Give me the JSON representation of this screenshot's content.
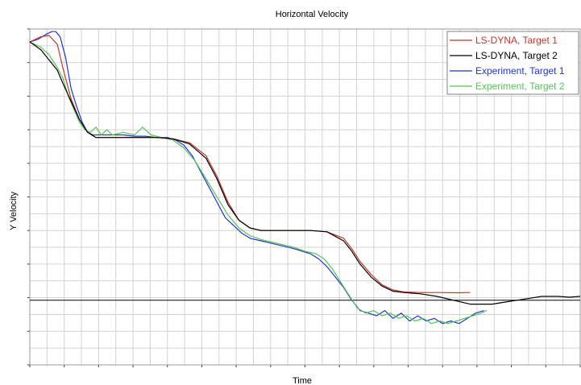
{
  "chart_data": {
    "type": "line",
    "title": "Horizontal Velocity",
    "xlabel": "Time",
    "ylabel": "Y Velocity",
    "grid": true,
    "legend_position": "top-right",
    "xlim": [
      0,
      100
    ],
    "ylim": [
      -25,
      105
    ],
    "zero_line": 0,
    "series": [
      {
        "name": "LS-DYNA, Target 1",
        "color": "#c0392b",
        "x": [
          0,
          2,
          3.5,
          5,
          6,
          7.5,
          9,
          10.5,
          12,
          14,
          17,
          20,
          23,
          26,
          29,
          32,
          34,
          36,
          38,
          40,
          42,
          45,
          48,
          51,
          54,
          57,
          58.5,
          60,
          62,
          64,
          66,
          68,
          71,
          74,
          78,
          80
        ],
        "y": [
          100,
          102,
          102.5,
          99,
          90,
          78,
          70,
          65,
          63,
          63,
          63,
          63,
          63,
          62.5,
          61,
          56,
          48,
          38,
          31,
          28,
          27,
          27,
          27,
          27,
          26.5,
          24,
          20,
          15,
          10,
          6,
          4,
          3.2,
          3,
          3,
          2.9,
          3
        ]
      },
      {
        "name": "LS-DYNA, Target 2",
        "color": "#000000",
        "x": [
          0,
          2,
          3.5,
          5,
          6,
          7.5,
          9,
          10.5,
          12,
          14,
          17,
          20,
          23,
          26,
          29,
          32,
          34,
          36,
          38,
          40,
          42,
          45,
          48,
          51,
          54,
          57,
          58.5,
          60,
          62,
          64,
          66,
          68,
          71,
          74,
          77,
          80,
          84,
          87,
          90,
          93,
          96,
          98,
          100
        ],
        "y": [
          100,
          97,
          93,
          89,
          84,
          77,
          70,
          65,
          63,
          63,
          63,
          63,
          63,
          62.5,
          60.5,
          55,
          47,
          37,
          31,
          28,
          27,
          27,
          27,
          27,
          26.5,
          23,
          19,
          14,
          9,
          5.5,
          3.5,
          3,
          2.5,
          1.5,
          0,
          -1.5,
          -1.5,
          -0.5,
          0.5,
          1.5,
          1.5,
          1.2,
          1.5
        ]
      },
      {
        "name": "Experiment, Target 1",
        "color": "#1f35d6",
        "x": [
          0,
          1.5,
          3,
          4,
          4.7,
          5.5,
          6.5,
          7.5,
          8.5,
          9.5,
          10.5,
          11.5,
          13,
          15,
          17,
          19,
          21,
          23,
          25,
          26.5,
          28,
          29.5,
          31,
          32.5,
          34,
          35.5,
          37,
          38.5,
          40,
          42,
          44,
          46,
          48,
          49.5,
          51,
          52.5,
          54,
          55.5,
          57,
          58.5,
          60,
          61.5,
          63,
          64.5,
          66,
          67.5,
          69,
          70.5,
          72,
          73.5,
          75,
          76.5,
          78,
          79.5,
          81,
          82.5
        ],
        "y": [
          100,
          101,
          103,
          104,
          104,
          102,
          94,
          82,
          75,
          69,
          65,
          64,
          64,
          64,
          64,
          63.5,
          63.5,
          63,
          63,
          62,
          60,
          56,
          50,
          44,
          38,
          32,
          29,
          26,
          24,
          23,
          22,
          21,
          20,
          19,
          18,
          16,
          13,
          9,
          5,
          0,
          -4,
          -5,
          -6,
          -4,
          -7,
          -5,
          -8,
          -6,
          -8,
          -7,
          -9,
          -8,
          -9,
          -7,
          -5,
          -4
        ]
      },
      {
        "name": "Experiment, Target 2",
        "color": "#55c455",
        "x": [
          0,
          2,
          3.5,
          5,
          6,
          7,
          8,
          9,
          10,
          11,
          12,
          13,
          14,
          15,
          17,
          19,
          20.5,
          22,
          24,
          26,
          28,
          30,
          32,
          34,
          36,
          38,
          40,
          42,
          44,
          46,
          48,
          50,
          52,
          53.5,
          55,
          56.5,
          58,
          59.5,
          61,
          62.5,
          64,
          65.5,
          67,
          68.5,
          70,
          71.5,
          73,
          74.5,
          76,
          77.5,
          79,
          80.5,
          82,
          83
        ],
        "y": [
          100,
          98,
          95,
          90,
          86,
          79,
          74,
          69,
          66,
          65,
          67,
          64,
          66,
          64,
          65,
          64,
          67,
          64,
          63,
          62,
          59,
          54,
          47,
          40,
          33,
          28,
          25,
          23.5,
          22.5,
          21.5,
          20.5,
          19,
          18,
          16,
          12,
          7,
          2,
          -3,
          -5,
          -4,
          -6,
          -5,
          -7,
          -6,
          -8,
          -7,
          -9,
          -8,
          -9,
          -8,
          -7,
          -6,
          -5,
          -4
        ]
      }
    ]
  }
}
